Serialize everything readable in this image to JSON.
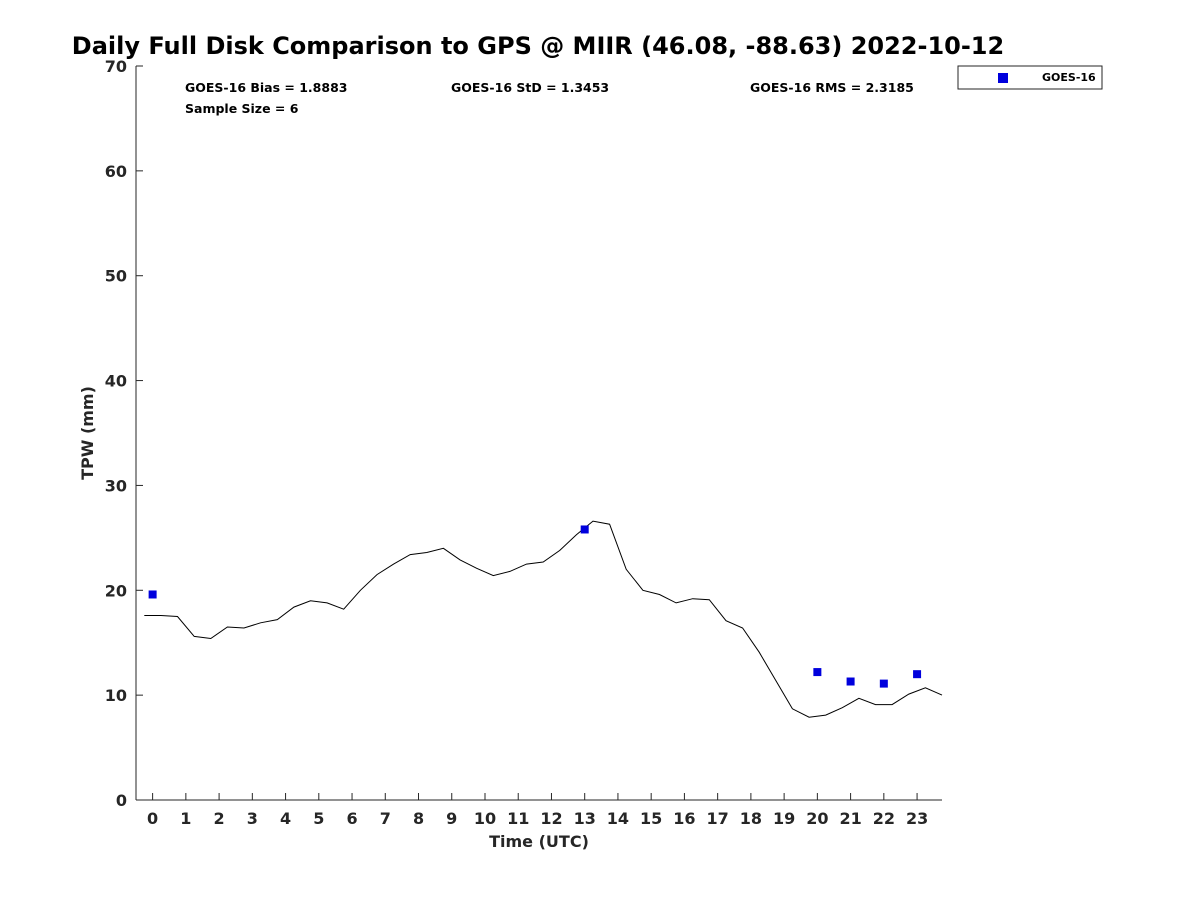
{
  "chart_data": {
    "type": "line",
    "title": "Daily Full Disk Comparison to GPS @ MIIR (46.08, -88.63) 2022-10-12",
    "xlabel": "Time (UTC)",
    "ylabel": "TPW (mm)",
    "xlim": [
      -0.5,
      23.75
    ],
    "ylim": [
      0,
      70
    ],
    "xticks": [
      0,
      1,
      2,
      3,
      4,
      5,
      6,
      7,
      8,
      9,
      10,
      11,
      12,
      13,
      14,
      15,
      16,
      17,
      18,
      19,
      20,
      21,
      22,
      23
    ],
    "yticks": [
      0,
      10,
      20,
      30,
      40,
      50,
      60,
      70
    ],
    "grid": false,
    "legend_position": "outside-top-right",
    "stats": {
      "bias": "GOES-16 Bias = 1.8883",
      "std": "GOES-16 StD = 1.3453",
      "rms": "GOES-16 RMS = 2.3185",
      "sample": "Sample Size = 6"
    },
    "series": [
      {
        "kind": "line",
        "color": "#000000",
        "x": [
          -0.25,
          0.25,
          0.75,
          1.25,
          1.75,
          2.25,
          2.75,
          3.25,
          3.75,
          4.25,
          4.75,
          5.25,
          5.75,
          6.25,
          6.75,
          7.25,
          7.75,
          8.25,
          8.75,
          9.25,
          9.75,
          10.25,
          10.75,
          11.25,
          11.75,
          12.25,
          12.75,
          13.25,
          13.75,
          14.25,
          14.75,
          15.25,
          15.75,
          16.25,
          16.75,
          17.25,
          17.75,
          18.25,
          18.75,
          19.25,
          19.75,
          20.25,
          20.75,
          21.25,
          21.75,
          22.25,
          22.75,
          23.25,
          23.75
        ],
        "y": [
          17.6,
          17.6,
          17.5,
          15.6,
          15.4,
          16.5,
          16.4,
          16.9,
          17.2,
          18.4,
          19.0,
          18.8,
          18.2,
          20.0,
          21.5,
          22.5,
          23.4,
          23.6,
          24.0,
          22.9,
          22.1,
          21.4,
          21.8,
          22.5,
          22.7,
          23.8,
          25.3,
          26.6,
          26.3,
          22.0,
          20.0,
          19.6,
          18.8,
          19.2,
          19.1,
          17.1,
          16.4,
          14.1,
          11.4,
          8.7,
          7.9,
          8.1,
          8.8,
          9.7,
          9.1,
          9.1,
          10.1,
          10.7,
          10.0
        ]
      },
      {
        "kind": "scatter",
        "name": "GOES-16",
        "color": "#0000dd",
        "x": [
          0,
          13,
          20,
          21,
          22,
          23
        ],
        "y": [
          19.6,
          25.8,
          12.2,
          11.3,
          11.1,
          12.0
        ]
      }
    ]
  }
}
